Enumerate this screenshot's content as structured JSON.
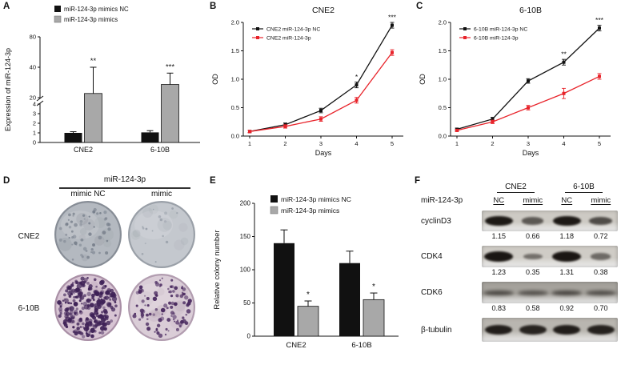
{
  "panels": {
    "a": {
      "letter": "A"
    },
    "b": {
      "letter": "B"
    },
    "c": {
      "letter": "C"
    },
    "d": {
      "letter": "D"
    },
    "e": {
      "letter": "E"
    },
    "f": {
      "letter": "F"
    }
  },
  "colors": {
    "black_series": "#111111",
    "gray_series": "#a8a8a8",
    "red_series": "#e8232a"
  },
  "chart_data": [
    {
      "id": "A",
      "type": "bar",
      "ylabel": "Expression of miR-124-3p",
      "categories": [
        "CNE2",
        "6-10B"
      ],
      "legend": [
        "miR-124-3p mimics NC",
        "miR-124-3p mimics"
      ],
      "axis_break": true,
      "lower_ticks": [
        0,
        1,
        2,
        3,
        4
      ],
      "upper_ticks": [
        20,
        40,
        80
      ],
      "series": [
        {
          "name": "miR-124-3p mimics NC",
          "color": "#111111",
          "values": [
            1.0,
            1.05
          ],
          "errors": [
            0.12,
            0.18
          ]
        },
        {
          "name": "miR-124-3p mimics",
          "color": "#a8a8a8",
          "values": [
            22,
            27
          ],
          "errors": [
            18,
            8
          ]
        }
      ],
      "significance": [
        {
          "category": "CNE2",
          "text": "**"
        },
        {
          "category": "6-10B",
          "text": "***"
        }
      ]
    },
    {
      "id": "B",
      "type": "line",
      "title": "CNE2",
      "xlabel": "Days",
      "ylabel": "OD",
      "x": [
        1,
        2,
        3,
        4,
        5
      ],
      "y_ticks": [
        0.0,
        0.5,
        1.0,
        1.5,
        2.0
      ],
      "ylim": [
        0,
        2.0
      ],
      "series": [
        {
          "name": "CNE2 miR-124-3p NC",
          "color": "#111111",
          "values": [
            0.08,
            0.2,
            0.45,
            0.9,
            1.95
          ],
          "errors": [
            0.02,
            0.03,
            0.04,
            0.05,
            0.05
          ]
        },
        {
          "name": "CNE2 miR-124-3p",
          "color": "#e8232a",
          "values": [
            0.08,
            0.17,
            0.3,
            0.63,
            1.47
          ],
          "errors": [
            0.02,
            0.03,
            0.04,
            0.05,
            0.05
          ]
        }
      ],
      "significance": [
        {
          "x": 4,
          "text": "*"
        },
        {
          "x": 5,
          "text": "***"
        }
      ]
    },
    {
      "id": "C",
      "type": "line",
      "title": "6-10B",
      "xlabel": "Days",
      "ylabel": "OD",
      "x": [
        1,
        2,
        3,
        4,
        5
      ],
      "y_ticks": [
        0.0,
        0.5,
        1.0,
        1.5,
        2.0
      ],
      "ylim": [
        0,
        2.0
      ],
      "series": [
        {
          "name": "6-10B miR-124-3p NC",
          "color": "#111111",
          "values": [
            0.12,
            0.3,
            0.97,
            1.3,
            1.9
          ],
          "errors": [
            0.02,
            0.03,
            0.04,
            0.05,
            0.05
          ]
        },
        {
          "name": "6-10B miR-124-3p",
          "color": "#e8232a",
          "values": [
            0.1,
            0.25,
            0.5,
            0.75,
            1.05
          ],
          "errors": [
            0.02,
            0.03,
            0.04,
            0.09,
            0.05
          ]
        }
      ],
      "significance": [
        {
          "x": 4,
          "text": "**"
        },
        {
          "x": 5,
          "text": "***"
        }
      ]
    },
    {
      "id": "E",
      "type": "bar",
      "ylabel": "Relative colony number",
      "categories": [
        "CNE2",
        "6-10B"
      ],
      "legend": [
        "miR-124-3p mimics NC",
        "miR-124-3p mimics"
      ],
      "y_ticks": [
        0,
        50,
        100,
        150,
        200
      ],
      "ylim": [
        0,
        200
      ],
      "series": [
        {
          "name": "miR-124-3p mimics NC",
          "color": "#111111",
          "values": [
            140,
            110
          ],
          "errors": [
            20,
            18
          ]
        },
        {
          "name": "miR-124-3p mimics",
          "color": "#a8a8a8",
          "values": [
            45,
            55
          ],
          "errors": [
            8,
            10
          ]
        }
      ],
      "significance": [
        {
          "category": "CNE2",
          "text": "*"
        },
        {
          "category": "6-10B",
          "text": "*"
        }
      ]
    }
  ],
  "panel_d": {
    "group_label": "miR-124-3p",
    "col_labels": [
      "mimic NC",
      "mimic"
    ],
    "row_labels": [
      "CNE2",
      "6-10B"
    ],
    "dishes": [
      {
        "row": "CNE2",
        "col": "mimic NC",
        "bg": "#b4b9c0",
        "rim": "#878d96",
        "blotch": "#5a616c",
        "colony_color": "#79818d",
        "colonies": 55,
        "dot_min": 1.0,
        "dot_max": 2.4
      },
      {
        "row": "CNE2",
        "col": "mimic",
        "bg": "#c4c8ce",
        "rim": "#9aa0a8",
        "blotch": "#7b828c",
        "colony_color": "#9aa1ab",
        "colonies": 16,
        "dot_min": 0.8,
        "dot_max": 2.0
      },
      {
        "row": "6-10B",
        "col": "mimic NC",
        "bg": "#d7c4d3",
        "rim": "#a98fa6",
        "blotch": "#7a5a78",
        "colony_color": "#3f2257",
        "colonies": 260,
        "dot_min": 1.2,
        "dot_max": 3.2
      },
      {
        "row": "6-10B",
        "col": "mimic",
        "bg": "#dacdd7",
        "rim": "#b29db0",
        "blotch": "#866882",
        "colony_color": "#4a2a60",
        "colonies": 100,
        "dot_min": 1.0,
        "dot_max": 2.8
      }
    ]
  },
  "panel_f": {
    "group_labels": [
      "CNE2",
      "6-10B"
    ],
    "lane_header_label": "miR-124-3p",
    "lane_labels": [
      "NC",
      "mimic",
      "NC",
      "mimic"
    ],
    "blots": [
      {
        "protein": "cyclinD3",
        "values": [
          "1.15",
          "0.66",
          "1.18",
          "0.72"
        ],
        "intensities": [
          0.95,
          0.45,
          0.95,
          0.55
        ],
        "bg": "#cdcac4",
        "band_style": "sharp",
        "height": 26
      },
      {
        "protein": "CDK4",
        "values": [
          "1.23",
          "0.35",
          "1.31",
          "0.38"
        ],
        "intensities": [
          0.97,
          0.28,
          0.97,
          0.32
        ],
        "bg": "#cfccc6",
        "band_style": "sharp",
        "height": 27
      },
      {
        "protein": "CDK6",
        "values": [
          "0.83",
          "0.58",
          "0.92",
          "0.70"
        ],
        "intensities": [
          0.5,
          0.34,
          0.55,
          0.4
        ],
        "bg": "#a5a29c",
        "band_style": "smear",
        "height": 27
      },
      {
        "protein": "β-tubulin",
        "values": [],
        "intensities": [
          0.9,
          0.85,
          0.9,
          0.87
        ],
        "bg": "#b9b6b0",
        "band_style": "sharp",
        "height": 30
      }
    ]
  }
}
